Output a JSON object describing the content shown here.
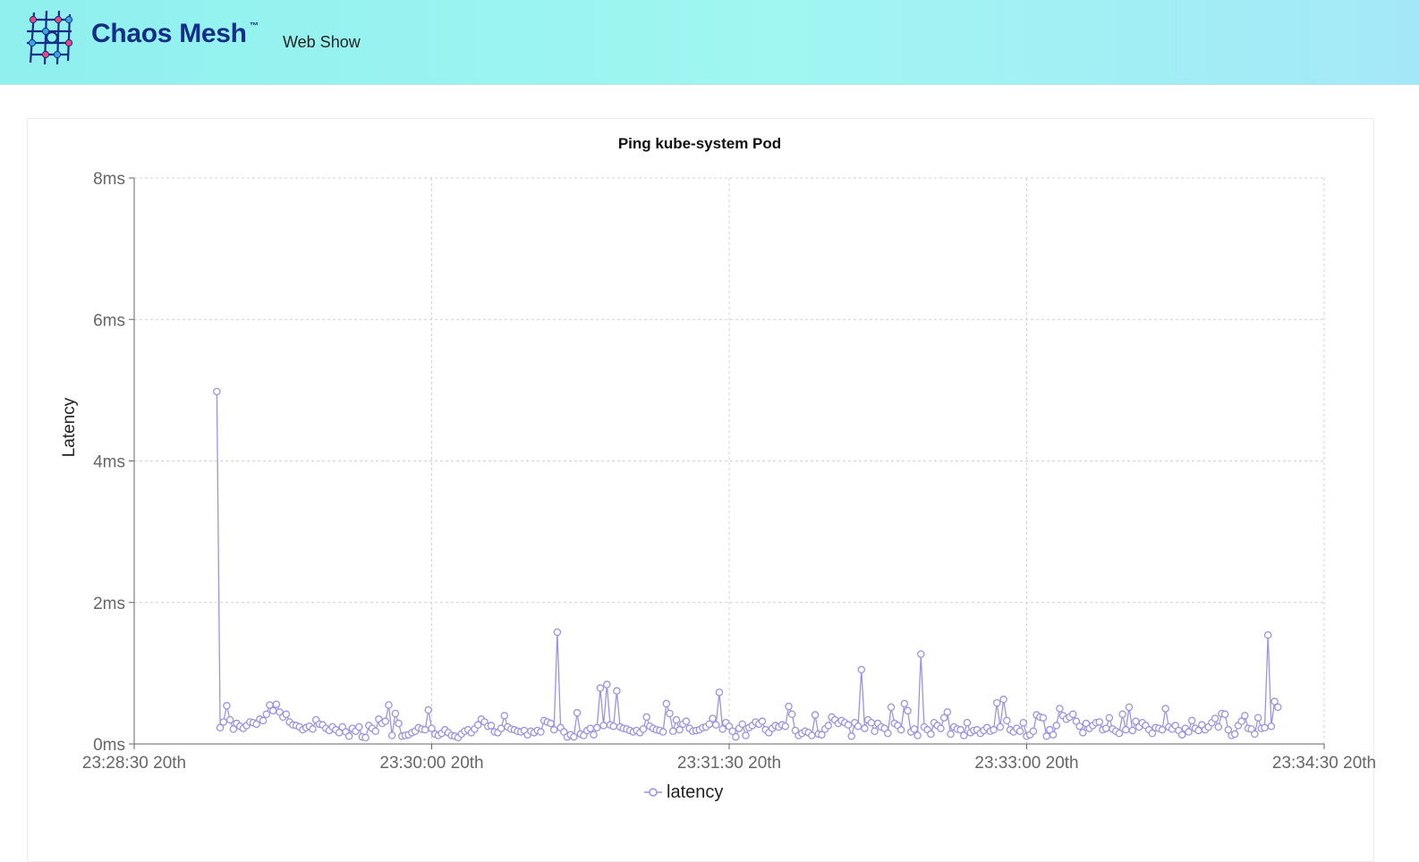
{
  "header": {
    "brand": "Chaos Mesh",
    "trademark": "™",
    "subtitle": "Web Show",
    "logo_icon": "chaos-mesh-network-logo-icon",
    "colors": {
      "banner": "#95f3ef",
      "brand_text": "#152d86",
      "logo_pink": "#e8487b",
      "logo_blue": "#3aa3e0",
      "logo_navy": "#152d86"
    }
  },
  "chart": {
    "title": "Ping kube-system Pod",
    "ylabel": "Latency",
    "legend": "latency",
    "line_color": "#9a94e2",
    "grid": true,
    "legend_position": "bottom-center"
  },
  "chart_data": {
    "type": "line",
    "title": "Ping kube-system Pod",
    "ylabel": "Latency",
    "xlabel": "",
    "ylim_ms": [
      0,
      8
    ],
    "y_ticks": [
      "0ms",
      "2ms",
      "4ms",
      "6ms",
      "8ms"
    ],
    "xlim_seconds": [
      0,
      360
    ],
    "x_tick_seconds": [
      0,
      90,
      180,
      270,
      360
    ],
    "x_ticks": [
      "23:28:30 20th",
      "23:30:00 20th",
      "23:31:30 20th",
      "23:33:00 20th",
      "23:34:30 20th"
    ],
    "series": [
      {
        "name": "latency",
        "color": "#9a94e2",
        "x_start_seconds": 25,
        "x_step_seconds": 1,
        "values": [
          4.98,
          0.23,
          0.31,
          0.54,
          0.34,
          0.21,
          0.29,
          0.25,
          0.22,
          0.26,
          0.31,
          0.3,
          0.28,
          0.35,
          0.33,
          0.42,
          0.55,
          0.47,
          0.56,
          0.45,
          0.38,
          0.42,
          0.31,
          0.27,
          0.26,
          0.24,
          0.2,
          0.23,
          0.25,
          0.21,
          0.34,
          0.28,
          0.27,
          0.22,
          0.19,
          0.24,
          0.2,
          0.16,
          0.24,
          0.17,
          0.11,
          0.22,
          0.18,
          0.24,
          0.1,
          0.09,
          0.26,
          0.22,
          0.18,
          0.35,
          0.29,
          0.32,
          0.55,
          0.12,
          0.43,
          0.29,
          0.11,
          0.12,
          0.13,
          0.16,
          0.18,
          0.23,
          0.21,
          0.2,
          0.48,
          0.22,
          0.14,
          0.12,
          0.15,
          0.2,
          0.16,
          0.12,
          0.11,
          0.09,
          0.14,
          0.18,
          0.2,
          0.16,
          0.21,
          0.27,
          0.35,
          0.31,
          0.25,
          0.26,
          0.17,
          0.16,
          0.22,
          0.4,
          0.24,
          0.21,
          0.2,
          0.18,
          0.17,
          0.19,
          0.13,
          0.18,
          0.16,
          0.19,
          0.17,
          0.33,
          0.31,
          0.29,
          0.2,
          1.58,
          0.23,
          0.17,
          0.1,
          0.13,
          0.1,
          0.44,
          0.14,
          0.12,
          0.19,
          0.22,
          0.13,
          0.23,
          0.79,
          0.26,
          0.84,
          0.27,
          0.25,
          0.75,
          0.24,
          0.22,
          0.21,
          0.19,
          0.17,
          0.19,
          0.16,
          0.21,
          0.38,
          0.25,
          0.22,
          0.2,
          0.19,
          0.17,
          0.57,
          0.43,
          0.18,
          0.34,
          0.2,
          0.28,
          0.32,
          0.22,
          0.18,
          0.19,
          0.2,
          0.23,
          0.24,
          0.28,
          0.36,
          0.27,
          0.73,
          0.21,
          0.3,
          0.25,
          0.18,
          0.1,
          0.22,
          0.28,
          0.12,
          0.23,
          0.26,
          0.31,
          0.28,
          0.32,
          0.2,
          0.16,
          0.22,
          0.26,
          0.24,
          0.27,
          0.25,
          0.53,
          0.42,
          0.19,
          0.12,
          0.15,
          0.18,
          0.16,
          0.12,
          0.41,
          0.14,
          0.13,
          0.21,
          0.26,
          0.38,
          0.34,
          0.29,
          0.33,
          0.3,
          0.27,
          0.11,
          0.3,
          0.25,
          1.05,
          0.22,
          0.34,
          0.3,
          0.18,
          0.29,
          0.24,
          0.22,
          0.15,
          0.52,
          0.29,
          0.26,
          0.2,
          0.57,
          0.47,
          0.17,
          0.21,
          0.12,
          1.27,
          0.24,
          0.2,
          0.14,
          0.3,
          0.26,
          0.22,
          0.37,
          0.45,
          0.14,
          0.24,
          0.21,
          0.2,
          0.12,
          0.3,
          0.16,
          0.19,
          0.2,
          0.15,
          0.19,
          0.23,
          0.18,
          0.2,
          0.58,
          0.24,
          0.63,
          0.33,
          0.2,
          0.17,
          0.22,
          0.18,
          0.3,
          0.11,
          0.13,
          0.18,
          0.41,
          0.38,
          0.37,
          0.11,
          0.2,
          0.13,
          0.26,
          0.5,
          0.4,
          0.35,
          0.38,
          0.42,
          0.32,
          0.25,
          0.16,
          0.29,
          0.22,
          0.26,
          0.3,
          0.31,
          0.2,
          0.22,
          0.37,
          0.21,
          0.18,
          0.15,
          0.42,
          0.2,
          0.52,
          0.19,
          0.32,
          0.24,
          0.3,
          0.26,
          0.2,
          0.15,
          0.23,
          0.22,
          0.2,
          0.5,
          0.24,
          0.21,
          0.26,
          0.19,
          0.13,
          0.22,
          0.17,
          0.33,
          0.22,
          0.19,
          0.27,
          0.2,
          0.24,
          0.3,
          0.36,
          0.24,
          0.43,
          0.42,
          0.2,
          0.12,
          0.14,
          0.26,
          0.32,
          0.4,
          0.22,
          0.21,
          0.14,
          0.37,
          0.22,
          0.23,
          1.54,
          0.25,
          0.6,
          0.52
        ]
      }
    ]
  }
}
